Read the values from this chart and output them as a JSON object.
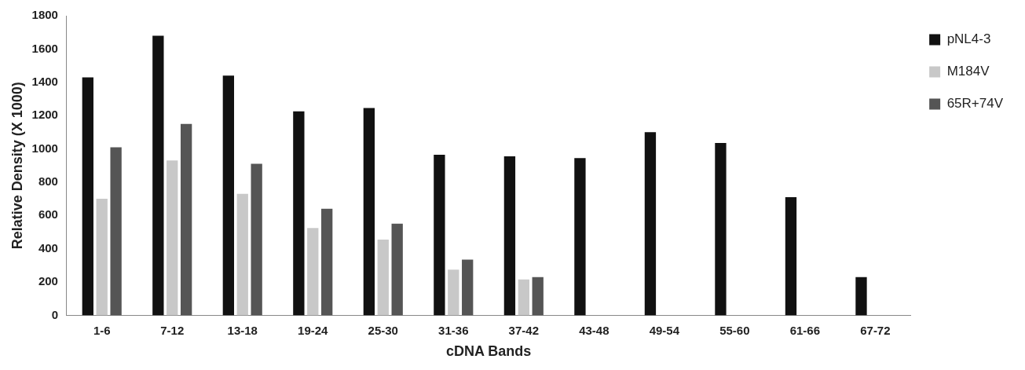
{
  "chart_data": {
    "type": "bar",
    "xlabel": "cDNA Bands",
    "ylabel": "Relative Density (X 1000)",
    "categories": [
      "1-6",
      "7-12",
      "13-18",
      "19-24",
      "25-30",
      "31-36",
      "37-42",
      "43-48",
      "49-54",
      "55-60",
      "61-66",
      "67-72"
    ],
    "series": [
      {
        "name": "pNL4-3",
        "color": "#111111",
        "values": [
          1430,
          1680,
          1440,
          1225,
          1245,
          965,
          955,
          945,
          1100,
          1035,
          710,
          230
        ]
      },
      {
        "name": "M184V",
        "color": "#c8c8c8",
        "values": [
          700,
          930,
          730,
          525,
          455,
          275,
          215,
          null,
          null,
          null,
          null,
          null
        ]
      },
      {
        "name": "65R+74V",
        "color": "#555555",
        "values": [
          1010,
          1150,
          910,
          640,
          550,
          335,
          230,
          null,
          null,
          null,
          null,
          null
        ]
      }
    ],
    "ylim": [
      0,
      1800
    ],
    "yticks": [
      0,
      200,
      400,
      600,
      800,
      1000,
      1200,
      1400,
      1600,
      1800
    ],
    "grid": false,
    "legend": "top right"
  }
}
